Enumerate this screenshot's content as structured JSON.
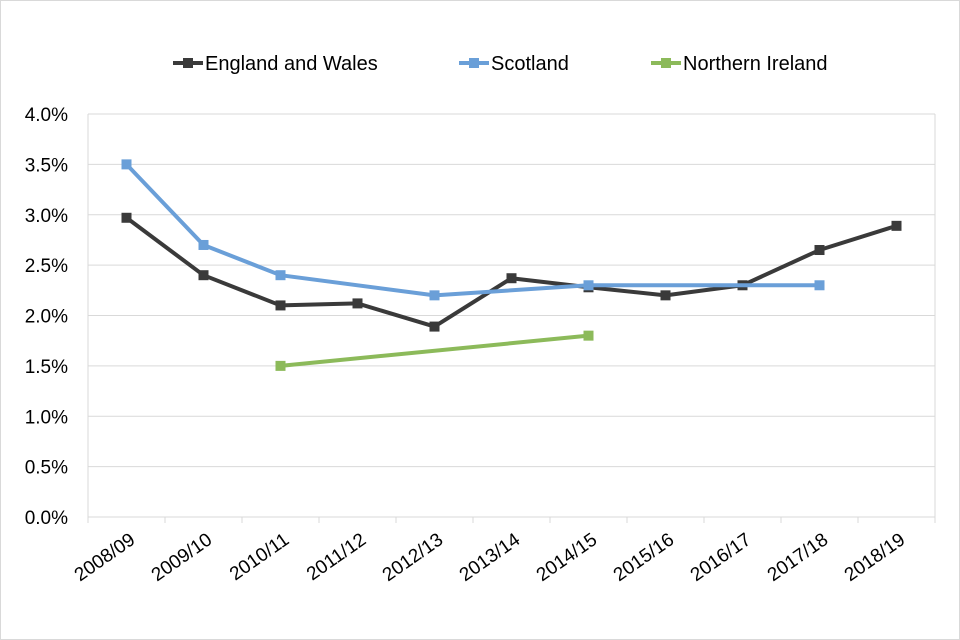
{
  "chart_data": {
    "type": "line",
    "title": "",
    "xlabel": "",
    "ylabel": "",
    "categories": [
      "2008/09",
      "2009/10",
      "2010/11",
      "2011/12",
      "2012/13",
      "2013/14",
      "2014/15",
      "2015/16",
      "2016/17",
      "2017/18",
      "2018/19"
    ],
    "y_ticks": [
      "0.0%",
      "0.5%",
      "1.0%",
      "1.5%",
      "2.0%",
      "2.5%",
      "3.0%",
      "3.5%",
      "4.0%"
    ],
    "ylim": [
      0,
      4.0
    ],
    "grid": true,
    "legend_position": "top",
    "series": [
      {
        "name": "England and Wales",
        "color": "#3a3a3a",
        "values": [
          2.97,
          2.4,
          2.1,
          2.12,
          1.89,
          2.37,
          2.28,
          2.2,
          2.3,
          2.65,
          2.89
        ]
      },
      {
        "name": "Scotland",
        "color": "#6a9fd8",
        "values": [
          3.5,
          2.7,
          2.4,
          null,
          2.2,
          null,
          2.3,
          null,
          null,
          2.3,
          null
        ]
      },
      {
        "name": "Northern Ireland",
        "color": "#8cba5a",
        "values": [
          null,
          null,
          1.5,
          null,
          null,
          null,
          1.8,
          null,
          null,
          null,
          null
        ]
      }
    ]
  }
}
